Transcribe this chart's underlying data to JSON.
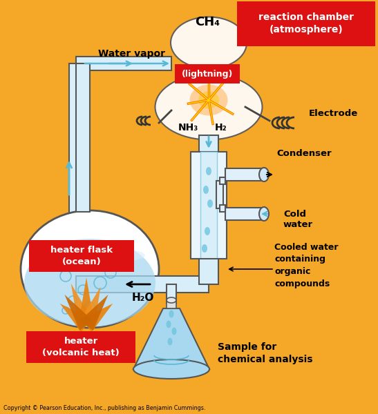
{
  "background_color": "#F5A828",
  "reaction_chamber_label": "reaction chamber\n(atmosphere)",
  "reaction_chamber_color": "#DD1111",
  "ch4_label": "CH₄",
  "lightning_label": "(lightning)",
  "electrode_label": "Electrode",
  "nh3_label": "NH₃",
  "h2_label": "H₂",
  "water_vapor_label": "Water vapor",
  "condenser_label": "Condenser",
  "cold_water_label": "Cold\nwater",
  "heater_flask_label": "heater flask\n(ocean)",
  "heater_flask_color": "#DD1111",
  "heater_label": "heater\n(volcanic heat)",
  "heater_color": "#DD1111",
  "h2o_label": "H₂O",
  "cooled_water_label": "Cooled water\ncontaining\norganic\ncompounds",
  "sample_label": "Sample for\nchemical analysis",
  "copyright_label": "Copyright © Pearson Education, Inc., publishing as Benjamin Cummings.",
  "tube_fill": "#D8EFFA",
  "tube_outline": "#7EC8E3",
  "tube_inner": "#B8E0F5",
  "arrow_color": "#5BB8D4",
  "flame_color": "#E8820C",
  "flask_water": "#A8D8EF",
  "white": "#FFFFFF"
}
